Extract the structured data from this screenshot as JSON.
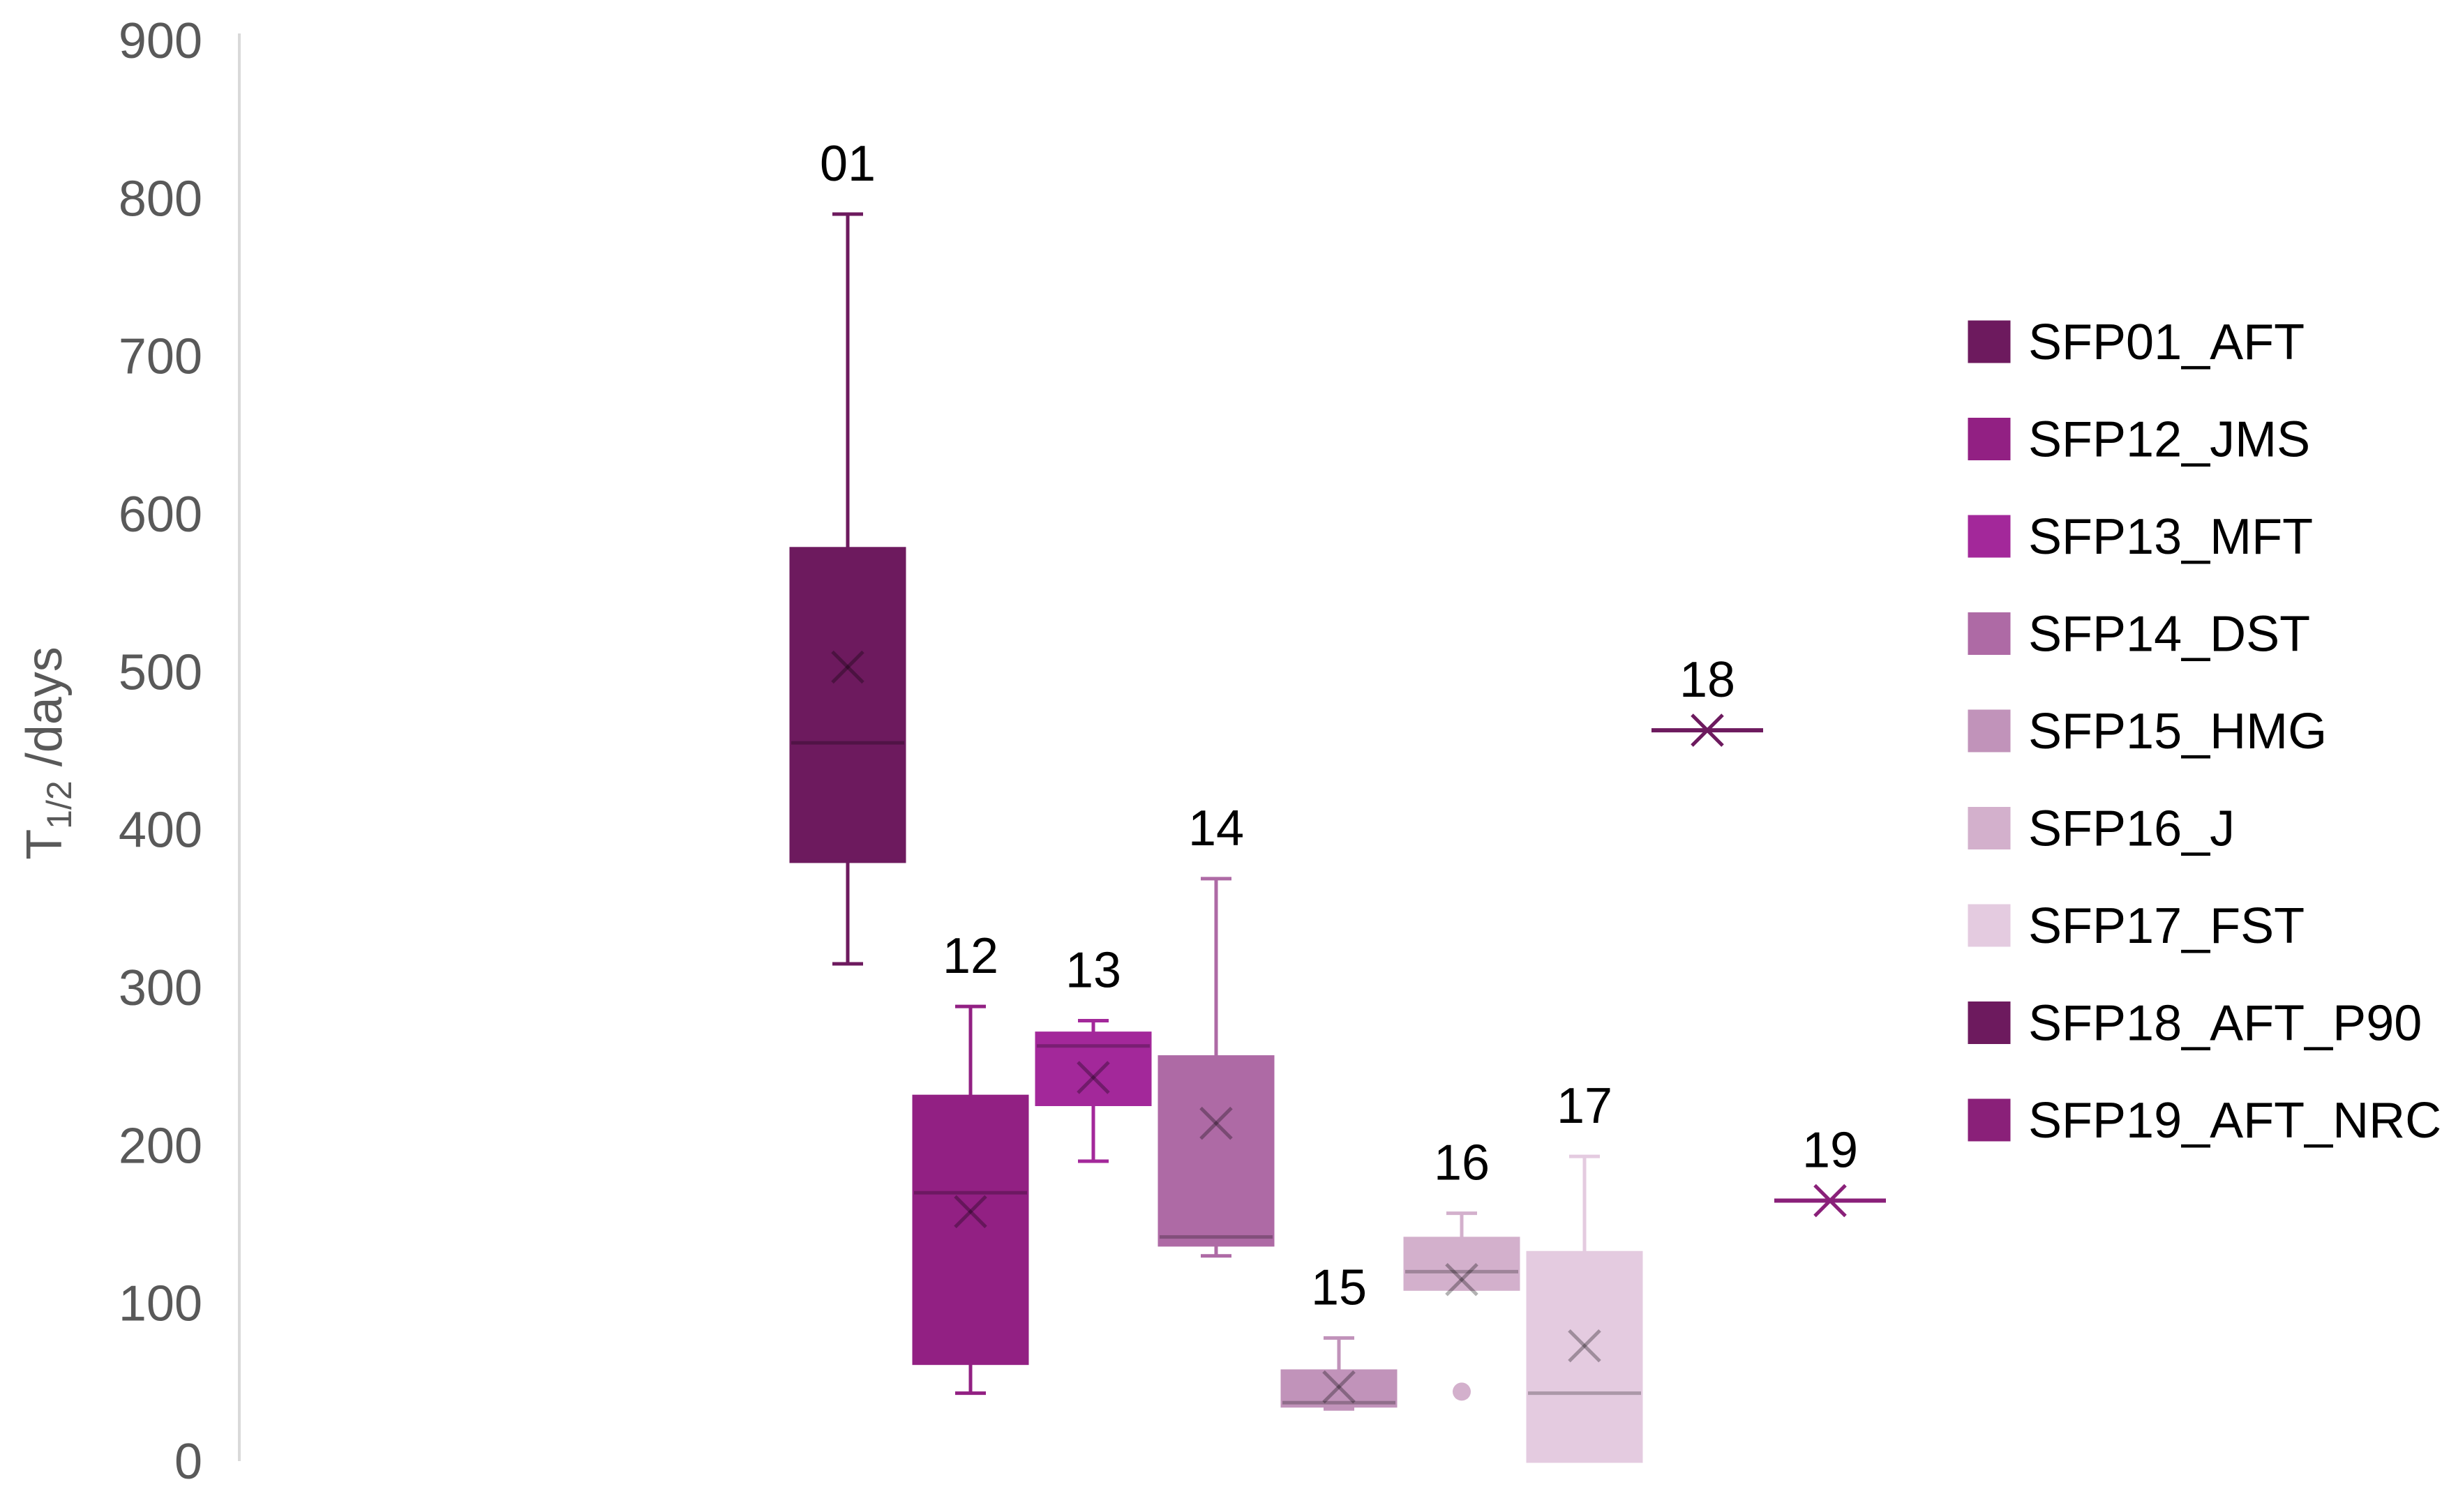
{
  "chart_data": {
    "type": "boxplot",
    "ylabel_main": "T",
    "ylabel_sub": "1/2",
    "ylabel_rest": " /days",
    "ylim": [
      0,
      900
    ],
    "yticks": [
      "0",
      "100",
      "200",
      "300",
      "400",
      "500",
      "600",
      "700",
      "800",
      "900"
    ],
    "grid": false,
    "legend_position": "right",
    "series": [
      {
        "name": "SFP01_AFT",
        "label": "01",
        "color": "#6d1a5e",
        "min": 315,
        "q1": 380,
        "median": 455,
        "q3": 578,
        "max": 790,
        "mean": 503,
        "outliers": []
      },
      {
        "name": "SFP12_JMS",
        "label": "12",
        "color": "#922083",
        "min": 43,
        "q1": 62,
        "median": 170,
        "q3": 231,
        "max": 288,
        "mean": 158,
        "outliers": []
      },
      {
        "name": "SFP13_MFT",
        "label": "13",
        "color": "#a3289a",
        "min": 190,
        "q1": 226,
        "median": 263,
        "q3": 271,
        "max": 279,
        "mean": 243,
        "outliers": []
      },
      {
        "name": "SFP14_DST",
        "label": "14",
        "color": "#ae6aa5",
        "min": 130,
        "q1": 137,
        "median": 142,
        "q3": 256,
        "max": 369,
        "mean": 214,
        "outliers": []
      },
      {
        "name": "SFP15_HMG",
        "label": "15",
        "color": "#c193ba",
        "min": 33,
        "q1": 35,
        "median": 37,
        "q3": 57,
        "max": 78,
        "mean": 47,
        "outliers": []
      },
      {
        "name": "SFP16_J",
        "label": "16",
        "color": "#d3b0cc",
        "min": 109,
        "q1": 109,
        "median": 120,
        "q3": 141,
        "max": 157,
        "mean": 115,
        "outliers": [
          44
        ]
      },
      {
        "name": "SFP17_FST",
        "label": "17",
        "color": "#e4cbe0",
        "min": 0,
        "q1": 0,
        "median": 43,
        "q3": 132,
        "max": 193,
        "mean": 73,
        "outliers": []
      },
      {
        "name": "SFP18_AFT_P90",
        "label": "18",
        "color": "#6d1a5e",
        "min": 463,
        "q1": 463,
        "median": 463,
        "q3": 463,
        "max": 463,
        "mean": 463,
        "outliers": []
      },
      {
        "name": "SFP19_AFT_NRC",
        "label": "19",
        "color": "#8a2079",
        "min": 165,
        "q1": 165,
        "median": 165,
        "q3": 165,
        "max": 165,
        "mean": 165,
        "outliers": []
      }
    ]
  }
}
